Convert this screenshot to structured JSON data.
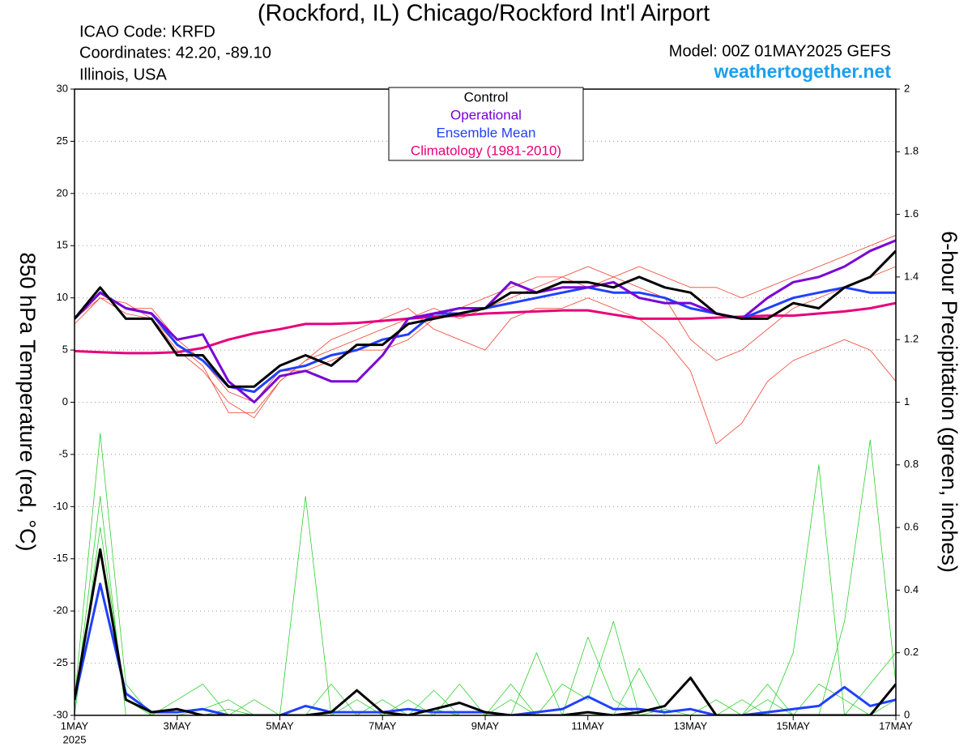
{
  "chart_data": {
    "type": "line",
    "title": "(Rockford, IL) Chicago/Rockford Int'l Airport",
    "info_lines": [
      "ICAO Code: KRFD",
      "Coordinates: 42.20, -89.10",
      "Illinois, USA"
    ],
    "model": "Model: 00Z 01MAY2025 GEFS",
    "site": "weathertogether.net",
    "ylabel": "850 hPa Temperature (red, °C)",
    "y2label": "6-hour Precipitation (green, inches)",
    "x_year": "2025",
    "x": [
      0,
      0.5,
      1,
      1.5,
      2,
      2.5,
      3,
      3.5,
      4,
      4.5,
      5,
      5.5,
      6,
      6.5,
      7,
      7.5,
      8,
      8.5,
      9,
      9.5,
      10,
      10.5,
      11,
      11.5,
      12,
      12.5,
      13,
      13.5,
      14,
      14.5,
      15,
      15.5,
      16
    ],
    "xlim": [
      0,
      16
    ],
    "xticks": [
      {
        "value": 0,
        "label": "1MAY"
      },
      {
        "value": 2,
        "label": "3MAY"
      },
      {
        "value": 4,
        "label": "5MAY"
      },
      {
        "value": 6,
        "label": "7MAY"
      },
      {
        "value": 8,
        "label": "9MAY"
      },
      {
        "value": 10,
        "label": "11MAY"
      },
      {
        "value": 12,
        "label": "13MAY"
      },
      {
        "value": 14,
        "label": "15MAY"
      },
      {
        "value": 16,
        "label": "17MAY"
      }
    ],
    "ylim": [
      -30,
      30
    ],
    "yticks": [
      -30,
      -25,
      -20,
      -15,
      -10,
      -5,
      0,
      5,
      10,
      15,
      20,
      25,
      30
    ],
    "y2lim": [
      0,
      2
    ],
    "y2ticks": [
      0,
      0.2,
      0.4,
      0.6,
      0.8,
      1,
      1.2,
      1.4,
      1.6,
      1.8,
      2
    ],
    "grid": true,
    "series": [
      {
        "color": "#f04030",
        "values": [
          7.5,
          10,
          9.5,
          8,
          5,
          3,
          0,
          -1.5,
          2,
          4,
          5,
          6,
          7,
          8,
          9,
          8,
          9,
          10,
          11,
          12,
          13,
          12,
          11,
          10,
          6,
          4,
          5,
          7,
          9,
          10,
          11,
          12,
          13
        ]
      },
      {
        "color": "#f04030",
        "values": [
          8,
          10.5,
          9,
          9,
          6,
          4,
          1,
          0,
          3,
          3,
          4,
          5,
          5,
          6,
          8,
          9,
          10,
          11,
          12,
          12,
          11,
          12,
          13,
          12,
          11,
          11,
          10,
          11,
          12,
          13,
          14,
          15,
          16
        ]
      },
      {
        "color": "#f04030",
        "values": [
          8,
          10,
          8.5,
          8,
          5.5,
          3.5,
          -1,
          -1,
          2,
          4,
          6,
          7,
          8,
          9,
          7,
          6,
          5,
          8,
          9,
          9,
          10,
          9,
          8,
          6,
          3,
          -4,
          -2,
          2,
          4,
          5,
          6,
          5,
          2
        ]
      },
      {
        "color": "#30d030",
        "axis": "y2",
        "values": [
          0.05,
          0.9,
          0.1,
          0,
          0,
          0.02,
          0.05,
          0,
          0,
          0,
          0,
          0.05,
          0,
          0,
          0.02,
          0,
          0,
          0.1,
          0,
          0,
          0.25,
          0.05,
          0,
          0.02,
          0,
          0,
          0,
          0.05,
          0,
          0.1,
          0.05,
          0,
          0.05
        ]
      },
      {
        "color": "#30d030",
        "axis": "y2",
        "values": [
          0,
          0.6,
          0.05,
          0,
          0,
          0,
          0.02,
          0,
          0,
          0.7,
          0,
          0,
          0,
          0.05,
          0,
          0.1,
          0,
          0,
          0.2,
          0,
          0,
          0,
          0.15,
          0,
          0,
          0,
          0.05,
          0,
          0.2,
          0.8,
          0,
          0.1,
          0.2
        ]
      },
      {
        "color": "#30d030",
        "axis": "y2",
        "values": [
          0.02,
          0.7,
          0,
          0,
          0.05,
          0.1,
          0,
          0.05,
          0,
          0,
          0.1,
          0,
          0.05,
          0,
          0.08,
          0,
          0,
          0.05,
          0,
          0.1,
          0.05,
          0.3,
          0,
          0,
          0,
          0.05,
          0,
          0.1,
          0,
          0,
          0.3,
          0.88,
          0.1
        ]
      },
      {
        "name": "Climatology (1981-2010)",
        "color": "#e6007a",
        "values": [
          4.9,
          4.8,
          4.7,
          4.7,
          4.8,
          5.2,
          6,
          6.6,
          7,
          7.5,
          7.5,
          7.6,
          7.8,
          8,
          8.2,
          8.3,
          8.5,
          8.6,
          8.7,
          8.8,
          8.8,
          8.4,
          8,
          8,
          8,
          8.1,
          8.2,
          8.3,
          8.3,
          8.5,
          8.7,
          9,
          9.5
        ]
      },
      {
        "name": "Ensemble Mean",
        "color": "#2040ff",
        "values": [
          8,
          10.5,
          9,
          8.5,
          5.5,
          4,
          1.5,
          1,
          3,
          3.5,
          4.5,
          5,
          6,
          6.5,
          8.5,
          8.5,
          9,
          9.5,
          10,
          10.5,
          11,
          10.5,
          10.5,
          10,
          9,
          8.5,
          8,
          9,
          10,
          10.5,
          11,
          10.5,
          10.5
        ]
      },
      {
        "name": "Operational",
        "color": "#7a00d6",
        "values": [
          8,
          10.5,
          9,
          8.5,
          6,
          6.5,
          2,
          0,
          2.5,
          3,
          2,
          2,
          4.5,
          8,
          8.5,
          9,
          9,
          11.5,
          10.5,
          11,
          11,
          11.5,
          10,
          9.5,
          9.5,
          8.5,
          8,
          10,
          11.5,
          12,
          13,
          14.5,
          15.5
        ]
      },
      {
        "name": "Control",
        "color": "#000000",
        "values": [
          8,
          11,
          8,
          8,
          4.5,
          4.5,
          1.5,
          1.5,
          3.5,
          4.5,
          3.5,
          5.5,
          5.5,
          7.5,
          8,
          8.5,
          9,
          10.5,
          10.5,
          11.5,
          11.5,
          11,
          12,
          11,
          10.5,
          8.5,
          8,
          8,
          9.5,
          9,
          11,
          12,
          14.5
        ]
      },
      {
        "color": "#2040ff",
        "axis": "y2",
        "values": [
          0.05,
          0.42,
          0.07,
          0.01,
          0.01,
          0.02,
          0,
          0,
          0,
          0.03,
          0.01,
          0.01,
          0.01,
          0.02,
          0.01,
          0.01,
          0.01,
          0,
          0.01,
          0.02,
          0.06,
          0.02,
          0.02,
          0.01,
          0.02,
          0,
          0,
          0.01,
          0.02,
          0.03,
          0.09,
          0.03,
          0.05
        ]
      },
      {
        "color": "#000000",
        "axis": "y2",
        "values": [
          0.05,
          0.53,
          0.05,
          0.01,
          0.02,
          0,
          0,
          0,
          0,
          0,
          0.01,
          0.08,
          0.01,
          0,
          0.02,
          0.04,
          0.01,
          0,
          0,
          0,
          0.01,
          0,
          0.01,
          0.03,
          0.12,
          0,
          0,
          0,
          0,
          0,
          0,
          0,
          0.1
        ]
      }
    ]
  }
}
